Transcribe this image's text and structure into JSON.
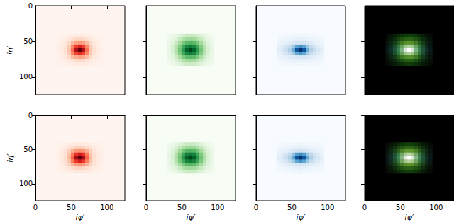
{
  "chart_data": [
    {
      "type": "heatmap",
      "color": "red",
      "xlim": [
        0,
        125
      ],
      "ylim": [
        125,
        0
      ],
      "xticks": [
        0,
        50,
        100
      ],
      "yticks": [
        0,
        50,
        100
      ],
      "tick_labels": "y",
      "ylabel": "iη′",
      "x": [
        32,
        37,
        42,
        47,
        52,
        57,
        62,
        67,
        72,
        77,
        82,
        87,
        92
      ],
      "y": [
        42,
        47,
        52,
        57,
        62,
        67,
        72,
        77,
        82
      ],
      "z": [
        [
          2,
          2,
          3,
          4,
          5,
          6,
          6,
          6,
          5,
          4,
          3,
          2,
          2
        ],
        [
          2,
          3,
          5,
          8,
          12,
          15,
          16,
          15,
          12,
          8,
          5,
          3,
          2
        ],
        [
          3,
          5,
          8,
          15,
          25,
          32,
          35,
          32,
          25,
          15,
          8,
          5,
          3
        ],
        [
          3,
          6,
          10,
          20,
          40,
          62,
          70,
          62,
          40,
          20,
          10,
          6,
          3
        ],
        [
          4,
          6,
          12,
          22,
          48,
          85,
          100,
          85,
          48,
          22,
          12,
          6,
          4
        ],
        [
          3,
          6,
          10,
          20,
          40,
          60,
          68,
          60,
          40,
          20,
          10,
          6,
          3
        ],
        [
          3,
          5,
          8,
          15,
          24,
          30,
          33,
          30,
          24,
          15,
          8,
          5,
          3
        ],
        [
          2,
          3,
          5,
          8,
          11,
          14,
          15,
          14,
          11,
          8,
          5,
          3,
          2
        ],
        [
          2,
          2,
          3,
          4,
          5,
          6,
          6,
          6,
          5,
          4,
          3,
          2,
          2
        ]
      ]
    },
    {
      "type": "heatmap",
      "color": "green",
      "xlim": [
        0,
        125
      ],
      "ylim": [
        125,
        0
      ],
      "xticks": [
        0,
        50,
        100
      ],
      "yticks": [
        0,
        50,
        100
      ],
      "tick_labels": false,
      "x": [
        32,
        37,
        42,
        47,
        52,
        57,
        62,
        67,
        72,
        77,
        82,
        87,
        92
      ],
      "y": [
        42,
        47,
        52,
        57,
        62,
        67,
        72,
        77,
        82
      ],
      "z": [
        [
          4,
          7,
          11,
          16,
          20,
          23,
          24,
          23,
          20,
          16,
          11,
          7,
          4
        ],
        [
          6,
          10,
          17,
          25,
          32,
          37,
          38,
          37,
          32,
          25,
          17,
          10,
          6
        ],
        [
          8,
          14,
          24,
          36,
          48,
          56,
          58,
          56,
          48,
          36,
          24,
          14,
          8
        ],
        [
          9,
          17,
          30,
          46,
          64,
          78,
          82,
          78,
          64,
          46,
          30,
          17,
          9
        ],
        [
          10,
          18,
          32,
          50,
          70,
          90,
          100,
          90,
          70,
          50,
          32,
          18,
          10
        ],
        [
          9,
          17,
          30,
          46,
          63,
          77,
          81,
          77,
          63,
          46,
          30,
          17,
          9
        ],
        [
          8,
          14,
          23,
          35,
          47,
          55,
          57,
          55,
          47,
          35,
          23,
          14,
          8
        ],
        [
          6,
          10,
          16,
          24,
          31,
          36,
          37,
          36,
          31,
          24,
          16,
          10,
          6
        ],
        [
          4,
          7,
          10,
          15,
          19,
          22,
          23,
          22,
          19,
          15,
          10,
          7,
          4
        ]
      ]
    },
    {
      "type": "heatmap",
      "color": "blue",
      "xlim": [
        0,
        125
      ],
      "ylim": [
        125,
        0
      ],
      "xticks": [
        0,
        50,
        100
      ],
      "yticks": [
        0,
        50,
        100
      ],
      "tick_labels": false,
      "x": [
        32,
        37,
        42,
        47,
        52,
        57,
        62,
        67,
        72,
        77,
        82,
        87,
        92
      ],
      "y": [
        42,
        47,
        52,
        57,
        62,
        67,
        72,
        77,
        82
      ],
      "z": [
        [
          2,
          2,
          3,
          3,
          4,
          4,
          4,
          4,
          4,
          3,
          3,
          2,
          2
        ],
        [
          3,
          4,
          5,
          6,
          7,
          8,
          8,
          8,
          7,
          6,
          5,
          4,
          3
        ],
        [
          5,
          7,
          9,
          12,
          15,
          17,
          18,
          17,
          15,
          12,
          9,
          7,
          5
        ],
        [
          8,
          12,
          18,
          25,
          38,
          55,
          62,
          55,
          38,
          25,
          18,
          12,
          8
        ],
        [
          10,
          15,
          22,
          32,
          50,
          85,
          100,
          85,
          50,
          32,
          22,
          15,
          10
        ],
        [
          8,
          12,
          17,
          24,
          36,
          52,
          60,
          52,
          36,
          24,
          17,
          12,
          8
        ],
        [
          5,
          7,
          9,
          12,
          14,
          16,
          17,
          16,
          14,
          12,
          9,
          7,
          5
        ],
        [
          3,
          4,
          5,
          6,
          7,
          8,
          8,
          8,
          7,
          6,
          5,
          4,
          3
        ],
        [
          2,
          2,
          3,
          3,
          4,
          4,
          4,
          4,
          4,
          3,
          3,
          2,
          2
        ]
      ]
    },
    {
      "type": "rgb",
      "xlim": [
        0,
        125
      ],
      "ylim": [
        125,
        0
      ],
      "xticks": [
        0,
        50,
        100
      ],
      "yticks": [
        0,
        50,
        100
      ],
      "tick_labels": false
    },
    {
      "type": "heatmap",
      "color": "red",
      "xlim": [
        0,
        125
      ],
      "ylim": [
        125,
        0
      ],
      "xticks": [
        0,
        50,
        100
      ],
      "yticks": [
        0,
        50,
        100
      ],
      "tick_labels": true,
      "xlabel": "iφ′",
      "ylabel": "iη′",
      "x": [
        32,
        37,
        42,
        47,
        52,
        57,
        62,
        67,
        72,
        77,
        82,
        87,
        92
      ],
      "y": [
        42,
        47,
        52,
        57,
        62,
        67,
        72,
        77,
        82
      ],
      "z": [
        [
          2,
          3,
          3,
          5,
          6,
          7,
          7,
          7,
          6,
          5,
          3,
          3,
          2
        ],
        [
          3,
          4,
          6,
          10,
          14,
          17,
          18,
          17,
          14,
          10,
          6,
          4,
          3
        ],
        [
          3,
          6,
          10,
          18,
          28,
          36,
          38,
          36,
          28,
          18,
          10,
          6,
          3
        ],
        [
          4,
          7,
          12,
          22,
          44,
          66,
          74,
          66,
          44,
          22,
          12,
          7,
          4
        ],
        [
          4,
          7,
          13,
          25,
          52,
          88,
          100,
          88,
          52,
          25,
          13,
          7,
          4
        ],
        [
          4,
          7,
          12,
          22,
          43,
          64,
          72,
          64,
          43,
          22,
          12,
          7,
          4
        ],
        [
          3,
          6,
          10,
          17,
          27,
          34,
          37,
          34,
          27,
          17,
          10,
          6,
          3
        ],
        [
          3,
          4,
          6,
          9,
          13,
          16,
          17,
          16,
          13,
          9,
          6,
          4,
          3
        ],
        [
          2,
          3,
          3,
          5,
          6,
          7,
          7,
          7,
          6,
          5,
          3,
          3,
          2
        ]
      ]
    },
    {
      "type": "heatmap",
      "color": "green",
      "xlim": [
        0,
        125
      ],
      "ylim": [
        125,
        0
      ],
      "xticks": [
        0,
        50,
        100
      ],
      "yticks": [
        0,
        50,
        100
      ],
      "tick_labels": "x",
      "xlabel": "iφ′",
      "x": [
        32,
        37,
        42,
        47,
        52,
        57,
        62,
        67,
        72,
        77,
        82,
        87,
        92
      ],
      "y": [
        42,
        47,
        52,
        57,
        62,
        67,
        72,
        77,
        82
      ],
      "z": [
        [
          4,
          7,
          11,
          16,
          21,
          24,
          25,
          24,
          21,
          16,
          11,
          7,
          4
        ],
        [
          6,
          11,
          18,
          26,
          33,
          38,
          39,
          38,
          33,
          26,
          18,
          11,
          6
        ],
        [
          8,
          15,
          25,
          37,
          49,
          57,
          59,
          57,
          49,
          37,
          25,
          15,
          8
        ],
        [
          9,
          17,
          31,
          47,
          65,
          79,
          83,
          79,
          65,
          47,
          31,
          17,
          9
        ],
        [
          10,
          18,
          33,
          51,
          71,
          91,
          100,
          91,
          71,
          51,
          33,
          18,
          10
        ],
        [
          9,
          17,
          31,
          47,
          64,
          78,
          82,
          78,
          64,
          47,
          31,
          17,
          9
        ],
        [
          8,
          15,
          24,
          36,
          48,
          56,
          58,
          56,
          48,
          36,
          24,
          15,
          8
        ],
        [
          6,
          10,
          17,
          25,
          32,
          37,
          38,
          37,
          32,
          25,
          17,
          10,
          6
        ],
        [
          4,
          7,
          11,
          16,
          20,
          23,
          24,
          23,
          20,
          16,
          11,
          7,
          4
        ]
      ]
    },
    {
      "type": "heatmap",
      "color": "blue",
      "xlim": [
        0,
        125
      ],
      "ylim": [
        125,
        0
      ],
      "xticks": [
        0,
        50,
        100
      ],
      "yticks": [
        0,
        50,
        100
      ],
      "tick_labels": "x",
      "xlabel": "iφ′",
      "x": [
        32,
        37,
        42,
        47,
        52,
        57,
        62,
        67,
        72,
        77,
        82,
        87,
        92
      ],
      "y": [
        42,
        47,
        52,
        57,
        62,
        67,
        72,
        77,
        82
      ],
      "z": [
        [
          2,
          2,
          3,
          3,
          4,
          4,
          5,
          4,
          4,
          3,
          3,
          2,
          2
        ],
        [
          3,
          4,
          5,
          6,
          7,
          8,
          9,
          8,
          7,
          6,
          5,
          4,
          3
        ],
        [
          5,
          7,
          9,
          12,
          15,
          18,
          19,
          18,
          15,
          12,
          9,
          7,
          5
        ],
        [
          8,
          12,
          18,
          26,
          40,
          57,
          64,
          57,
          40,
          26,
          18,
          12,
          8
        ],
        [
          10,
          15,
          22,
          33,
          52,
          86,
          100,
          86,
          52,
          33,
          22,
          15,
          10
        ],
        [
          8,
          12,
          17,
          25,
          38,
          54,
          62,
          54,
          38,
          25,
          17,
          12,
          8
        ],
        [
          5,
          7,
          9,
          12,
          15,
          17,
          18,
          17,
          15,
          12,
          9,
          7,
          5
        ],
        [
          3,
          4,
          5,
          6,
          7,
          8,
          9,
          8,
          7,
          6,
          5,
          4,
          3
        ],
        [
          2,
          2,
          3,
          3,
          4,
          4,
          5,
          4,
          4,
          3,
          3,
          2,
          2
        ]
      ]
    },
    {
      "type": "rgb",
      "xlim": [
        0,
        125
      ],
      "ylim": [
        125,
        0
      ],
      "xticks": [
        0,
        50,
        100
      ],
      "yticks": [
        0,
        50,
        100
      ],
      "tick_labels": "x",
      "xlabel": "iφ′"
    }
  ]
}
